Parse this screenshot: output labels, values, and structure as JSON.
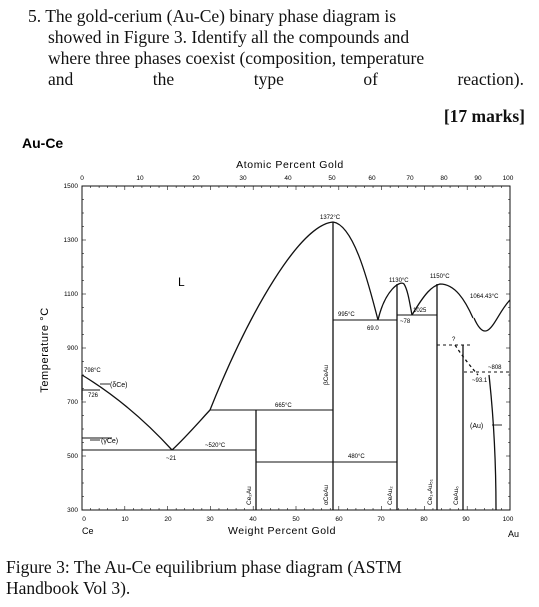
{
  "question": {
    "number": "5.",
    "line1": "The gold-cerium (Au-Ce) binary phase diagram is",
    "line2": "showed in Figure 3. Identify all the compounds and",
    "line3": "where three phases coexist (composition, temperature",
    "line4_words": [
      "and",
      "the",
      "type",
      "of",
      "reaction)."
    ],
    "marks": "[17 marks]"
  },
  "figure": {
    "system_label": "Au-Ce",
    "top_axis_label": "Atomic Percent Gold",
    "bottom_axis_label": "Weight Percent Gold",
    "y_axis_label": "Temperature °C",
    "left_element": "Ce",
    "right_element": "Au",
    "caption_line1": "Figure 3: The Au-Ce equilibrium phase diagram (ASTM",
    "caption_line2": "Handbook Vol 3)."
  },
  "chart_data": {
    "type": "phase-diagram",
    "x_wt_ticks": [
      "0",
      "10",
      "20",
      "30",
      "40",
      "50",
      "60",
      "70",
      "80",
      "90",
      "100"
    ],
    "x_at_ticks": [
      "0",
      "10",
      "20",
      "30",
      "40",
      "50",
      "60",
      "70",
      "80",
      "90",
      "100"
    ],
    "y_ticks": [
      "300",
      "500",
      "700",
      "900",
      "1100",
      "1300",
      "1500"
    ],
    "ylim": [
      300,
      1500
    ],
    "phases": {
      "liquid": "L",
      "delta_ce": "(δCe)",
      "gamma_ce": "(γCe)",
      "au_ss": "(Au)"
    },
    "compounds": [
      "Ce₂Au",
      "αCeAu",
      "βCeAu",
      "CeAu₂",
      "Ce₁₄Au₅₁",
      "CeAu₆"
    ],
    "annotations": {
      "t798": "798°C",
      "t726": "726",
      "t_eut1": "~21",
      "t520": "~520°C",
      "t665": "665°C",
      "t1372": "1372°C",
      "t480": "480°C",
      "t995": "995°C",
      "c690": "69.0",
      "t1130": "1130°C",
      "c78": "~78",
      "t1025": "1025",
      "t1150": "1150°C",
      "t1064": "1064.43°C",
      "q": "?",
      "t808": "~808",
      "c931": "~93.1"
    }
  }
}
